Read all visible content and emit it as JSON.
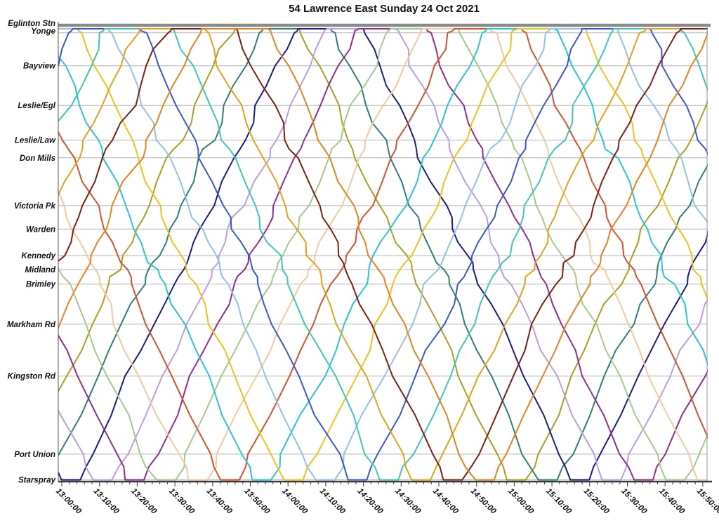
{
  "title": "54 Lawrence East Sunday 24 Oct 2021",
  "chart_data": {
    "type": "line",
    "subtype": "stringline-marey-transit-diagram",
    "title": "54 Lawrence East Sunday 24 Oct 2021",
    "legend_position": "none",
    "grid": {
      "horizontal": true,
      "vertical": false
    },
    "x_axis": {
      "label": "",
      "start": "13:00:00",
      "end": "15:50:00",
      "major_tick_minutes": 10,
      "minor_tick_minutes": 2,
      "window_min_after_1300": [
        -1,
        171
      ],
      "tick_labels": [
        "13:00:00",
        "13:10:00",
        "13:20:00",
        "13:30:00",
        "13:40:00",
        "13:50:00",
        "14:00:00",
        "14:10:00",
        "14:20:00",
        "14:30:00",
        "14:40:00",
        "14:50:00",
        "15:00:00",
        "15:10:00",
        "15:20:00",
        "15:30:00",
        "15:40:00",
        "15:50:00"
      ]
    },
    "y_axis": {
      "label": "",
      "stations": [
        {
          "name": "Eglinton Stn",
          "position": 0.0
        },
        {
          "name": "Yonge",
          "position": 0.009
        },
        {
          "name": "Bayview",
          "position": 0.082
        },
        {
          "name": "Leslie/Egl",
          "position": 0.17
        },
        {
          "name": "Leslie/Law",
          "position": 0.247
        },
        {
          "name": "Don Mills",
          "position": 0.286
        },
        {
          "name": "Victoria Pk",
          "position": 0.392
        },
        {
          "name": "Warden",
          "position": 0.444
        },
        {
          "name": "Kennedy",
          "position": 0.503
        },
        {
          "name": "Midland",
          "position": 0.534
        },
        {
          "name": "Brimley",
          "position": 0.566
        },
        {
          "name": "Markham Rd",
          "position": 0.655
        },
        {
          "name": "Kingston Rd",
          "position": 0.77
        },
        {
          "name": "Port Union",
          "position": 0.943
        },
        {
          "name": "Starspray",
          "position": 1.0
        }
      ]
    },
    "service_pattern": {
      "southbound_trip_min": 55,
      "layover_starspray_min": 5,
      "northbound_trip_min": 57,
      "layover_eglinton_min": 18,
      "round_trip_cycle_min": 135,
      "approx_headway_min": 8.4
    },
    "vehicles": [
      {
        "run": "run-01",
        "color": "#A8A020",
        "first_southbound_departure_min_after_1300": -72.0
      },
      {
        "run": "run-02",
        "color": "#2F7F72",
        "first_southbound_departure_min_after_1300": -63.6
      },
      {
        "run": "run-03",
        "color": "#1A1A8F",
        "first_southbound_departure_min_after_1300": -55.1
      },
      {
        "run": "run-04",
        "color": "#B8A0E0",
        "first_southbound_departure_min_after_1300": -46.7
      },
      {
        "run": "run-05",
        "color": "#8E2F8E",
        "first_southbound_departure_min_after_1300": -38.2
      },
      {
        "run": "run-06",
        "color": "#A5C98B",
        "first_southbound_departure_min_after_1300": -29.8
      },
      {
        "run": "run-07",
        "color": "#F2CA9E",
        "first_southbound_departure_min_after_1300": -21.4
      },
      {
        "run": "run-08",
        "color": "#D9512C",
        "first_southbound_departure_min_after_1300": -12.9
      },
      {
        "run": "run-09",
        "color": "#29C5D6",
        "first_southbound_departure_min_after_1300": -4.5
      },
      {
        "run": "run-10",
        "color": "#EFC31C",
        "first_southbound_departure_min_after_1300": 4.0
      },
      {
        "run": "run-11",
        "color": "#92C1E9",
        "first_southbound_departure_min_after_1300": 12.4
      },
      {
        "run": "run-12",
        "color": "#3A55D9",
        "first_southbound_departure_min_after_1300": 20.9
      },
      {
        "run": "run-13",
        "color": "#3EC8B4",
        "first_southbound_departure_min_after_1300": 29.3
      },
      {
        "run": "run-14",
        "color": "#E2A21B",
        "first_southbound_departure_min_after_1300": 37.8
      },
      {
        "run": "run-15",
        "color": "#7E1F16",
        "first_southbound_departure_min_after_1300": 46.2
      },
      {
        "run": "run-16",
        "color": "#E8821E",
        "first_southbound_departure_min_after_1300": 54.7
      }
    ]
  }
}
